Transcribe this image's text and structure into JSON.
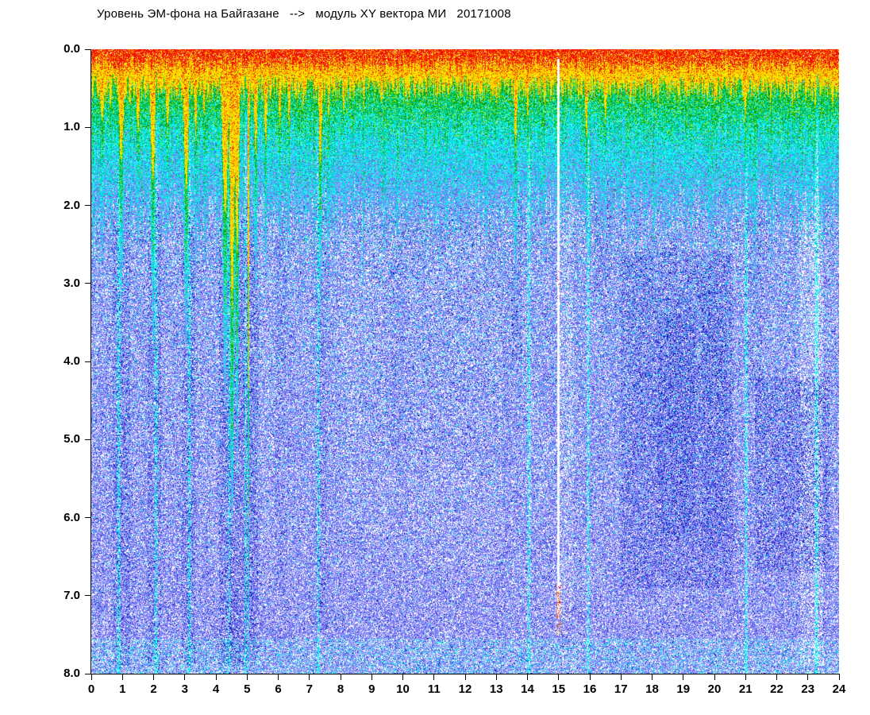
{
  "title": "Уровень ЭМ-фона на Байгазане   -->   модуль XY вектора МИ   20171008",
  "chart_data": {
    "type": "heatmap",
    "subtype": "spectrogram-dot-density",
    "title": "Уровень ЭМ-фона на Байгазане --> модуль XY вектора МИ 20171008",
    "date_label": "20171008",
    "x_axis": {
      "min": 0,
      "max": 24,
      "ticks": [
        "0",
        "1",
        "2",
        "3",
        "4",
        "5",
        "6",
        "7",
        "8",
        "9",
        "10",
        "11",
        "12",
        "13",
        "14",
        "15",
        "16",
        "17",
        "18",
        "19",
        "20",
        "21",
        "22",
        "23",
        "24"
      ]
    },
    "y_axis": {
      "min": 0,
      "max": 8,
      "inverted": true,
      "ticks": [
        "0.0",
        "1.0",
        "2.0",
        "3.0",
        "4.0",
        "5.0",
        "6.0",
        "7.0",
        "8.0"
      ]
    },
    "grid": false,
    "legend": null,
    "palette": {
      "red": "#f01000",
      "orange": "#ff8a00",
      "yellow": "#ffe400",
      "yellow_green": "#a8e800",
      "green": "#00b41e",
      "dark_green": "#008a0e",
      "cyan": "#00e6e6",
      "pale_cyan": "#58fbff",
      "periwinkle": "#8c8cfa",
      "medium_blue": "#5f5fe8",
      "dark_blue": "#2222c8",
      "navy": "#0a0aa6",
      "white": "#ffffff"
    },
    "bands_format": [
      "name",
      "v_range",
      "dominant_colors"
    ],
    "bands": [
      {
        "name": "surface_red",
        "v": [
          0.0,
          0.15
        ],
        "colors": [
          "red",
          "orange"
        ]
      },
      {
        "name": "orange_yellow",
        "v": [
          0.15,
          0.5
        ],
        "colors": [
          "orange",
          "yellow"
        ]
      },
      {
        "name": "green_speckle",
        "v": [
          0.5,
          1.1
        ],
        "colors": [
          "green",
          "yellow_green"
        ]
      },
      {
        "name": "cyan_transition",
        "v": [
          1.1,
          2.1
        ],
        "colors": [
          "cyan",
          "pale_cyan"
        ]
      },
      {
        "name": "blue_body",
        "v": [
          2.1,
          8.0
        ],
        "colors": [
          "periwinkle",
          "white",
          "medium_blue",
          "dark_blue",
          "cyan"
        ]
      }
    ],
    "plumes_format": [
      "hour",
      "width_h",
      "depth_v"
    ],
    "plumes": [
      [
        0.35,
        0.1,
        1.5
      ],
      [
        0.62,
        0.07,
        1.2
      ],
      [
        0.95,
        0.12,
        2.3
      ],
      [
        1.25,
        0.06,
        1.2
      ],
      [
        1.5,
        0.08,
        1.7
      ],
      [
        1.98,
        0.1,
        2.7
      ],
      [
        2.45,
        0.08,
        1.6
      ],
      [
        3.05,
        0.1,
        2.9
      ],
      [
        3.35,
        0.06,
        1.8
      ],
      [
        3.62,
        0.06,
        1.4
      ],
      [
        4.3,
        0.12,
        3.4
      ],
      [
        4.52,
        0.1,
        5.3
      ],
      [
        4.68,
        0.08,
        4.2
      ],
      [
        5.05,
        0.025,
        7.6
      ],
      [
        5.28,
        0.07,
        2.2
      ],
      [
        5.6,
        0.07,
        1.9
      ],
      [
        6.05,
        0.06,
        1.6
      ],
      [
        6.35,
        0.06,
        1.6
      ],
      [
        6.8,
        0.05,
        1.3
      ],
      [
        7.35,
        0.08,
        2.4
      ],
      [
        7.62,
        0.05,
        1.5
      ],
      [
        8.1,
        0.06,
        1.3
      ],
      [
        8.75,
        0.05,
        1.2
      ],
      [
        9.3,
        0.05,
        1.15
      ],
      [
        10.2,
        0.05,
        1.1
      ],
      [
        11.1,
        0.05,
        1.1
      ],
      [
        12.3,
        0.05,
        1.1
      ],
      [
        13.0,
        0.05,
        1.15
      ],
      [
        13.62,
        0.07,
        2.0
      ],
      [
        14.02,
        0.06,
        1.6
      ],
      [
        14.55,
        0.05,
        1.2
      ],
      [
        15.9,
        0.07,
        1.8
      ],
      [
        16.5,
        0.06,
        1.5
      ],
      [
        17.3,
        0.05,
        1.2
      ],
      [
        18.2,
        0.05,
        1.15
      ],
      [
        19.1,
        0.05,
        1.1
      ],
      [
        20.0,
        0.05,
        1.15
      ],
      [
        21.0,
        0.07,
        1.7
      ],
      [
        21.8,
        0.05,
        1.2
      ],
      [
        22.5,
        0.05,
        1.2
      ],
      [
        23.25,
        0.06,
        1.4
      ],
      [
        23.8,
        0.05,
        1.2
      ]
    ],
    "cyan_streaks_format": [
      "hour",
      "width_h"
    ],
    "cyan_streaks": [
      [
        0.88,
        0.05
      ],
      [
        2.08,
        0.05
      ],
      [
        3.15,
        0.05
      ],
      [
        4.42,
        0.04
      ],
      [
        4.95,
        0.04
      ],
      [
        7.28,
        0.05
      ],
      [
        14.05,
        0.05
      ],
      [
        15.95,
        0.04
      ],
      [
        21.02,
        0.05
      ],
      [
        23.28,
        0.06
      ]
    ],
    "dark_patches_format": [
      "hour_start",
      "hour_end",
      "v_start",
      "v_end",
      "strength"
    ],
    "dark_patches": [
      [
        0.7,
        1.25,
        1.3,
        7.9,
        0.22
      ],
      [
        1.8,
        2.25,
        1.6,
        7.9,
        0.2
      ],
      [
        2.9,
        3.35,
        2.1,
        7.9,
        0.22
      ],
      [
        4.1,
        5.35,
        2.2,
        7.9,
        0.26
      ],
      [
        5.9,
        6.25,
        1.8,
        7.0,
        0.1
      ],
      [
        7.2,
        7.55,
        1.8,
        7.5,
        0.15
      ],
      [
        13.5,
        13.8,
        1.3,
        4.0,
        0.15
      ],
      [
        16.15,
        16.7,
        1.2,
        3.2,
        0.14
      ],
      [
        17.0,
        20.6,
        2.6,
        6.9,
        0.24
      ],
      [
        18.2,
        19.4,
        3.4,
        6.2,
        0.18
      ],
      [
        19.6,
        20.4,
        3.0,
        6.4,
        0.12
      ],
      [
        21.3,
        23.7,
        4.2,
        6.7,
        0.26
      ],
      [
        21.0,
        21.6,
        2.0,
        4.5,
        0.1
      ],
      [
        9.0,
        13.4,
        2.2,
        5.2,
        0.06
      ]
    ],
    "light_patches_format": [
      "hour_start",
      "hour_end",
      "v_start",
      "v_end",
      "strength"
    ],
    "light_patches": [
      [
        22.75,
        23.5,
        0.8,
        7.9,
        0.3
      ],
      [
        14.95,
        15.5,
        0.8,
        7.3,
        0.22
      ],
      [
        10.2,
        13.2,
        2.5,
        6.6,
        0.1
      ],
      [
        8.0,
        9.6,
        2.3,
        6.2,
        0.08
      ],
      [
        5.4,
        5.9,
        2.0,
        7.0,
        0.08
      ]
    ],
    "white_gap": {
      "h": 15.0,
      "w": 0.035,
      "v0": 0.12,
      "v1": 7.3,
      "dot_zones_format": [
        "v_start",
        "v_end",
        "probability"
      ],
      "dot_zones": [
        [
          2.75,
          3.2,
          0.1
        ],
        [
          6.85,
          7.5,
          0.3
        ]
      ]
    }
  }
}
